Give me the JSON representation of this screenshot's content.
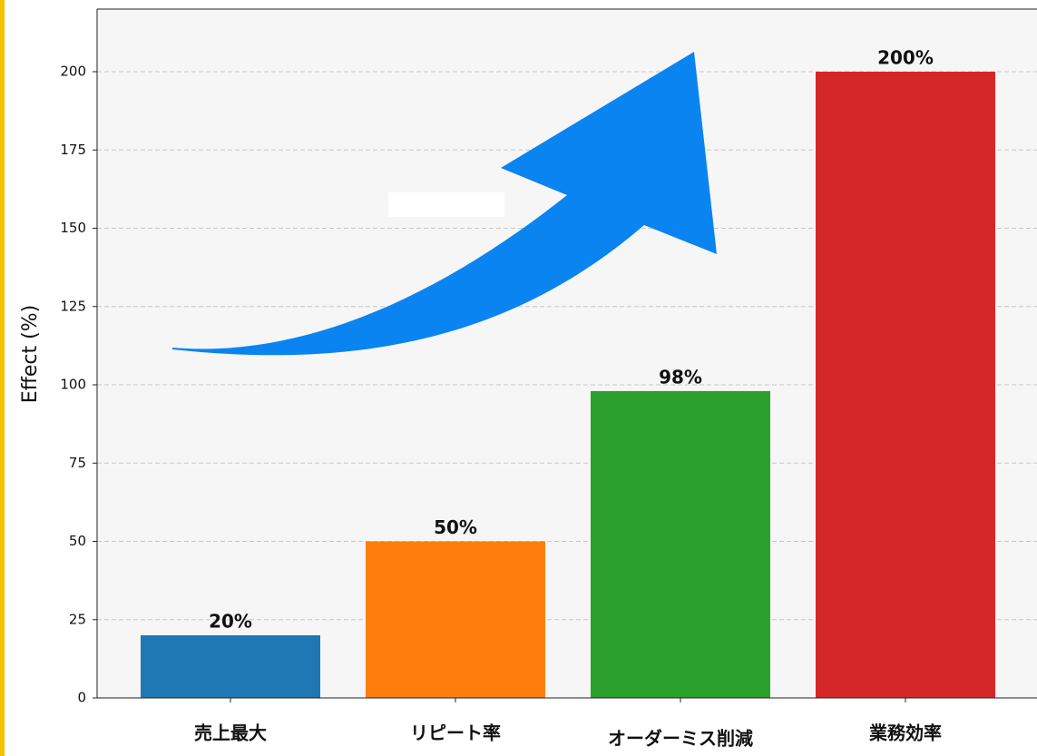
{
  "chart_data": {
    "type": "bar",
    "y_label": "Effect (%)",
    "categories": [
      "売上最大",
      "リピート率",
      "オーダーミス削減",
      "業務効率"
    ],
    "values": [
      20,
      50,
      98,
      200
    ],
    "value_labels": [
      "20%",
      "50%",
      "98%",
      "200%"
    ],
    "colors": [
      "#1f77b4",
      "#ff7f0e",
      "#2ca02c",
      "#d62728"
    ],
    "ylim": [
      0,
      220
    ],
    "yticks": [
      0,
      25,
      50,
      75,
      100,
      125,
      150,
      175,
      200
    ],
    "grid": true
  }
}
